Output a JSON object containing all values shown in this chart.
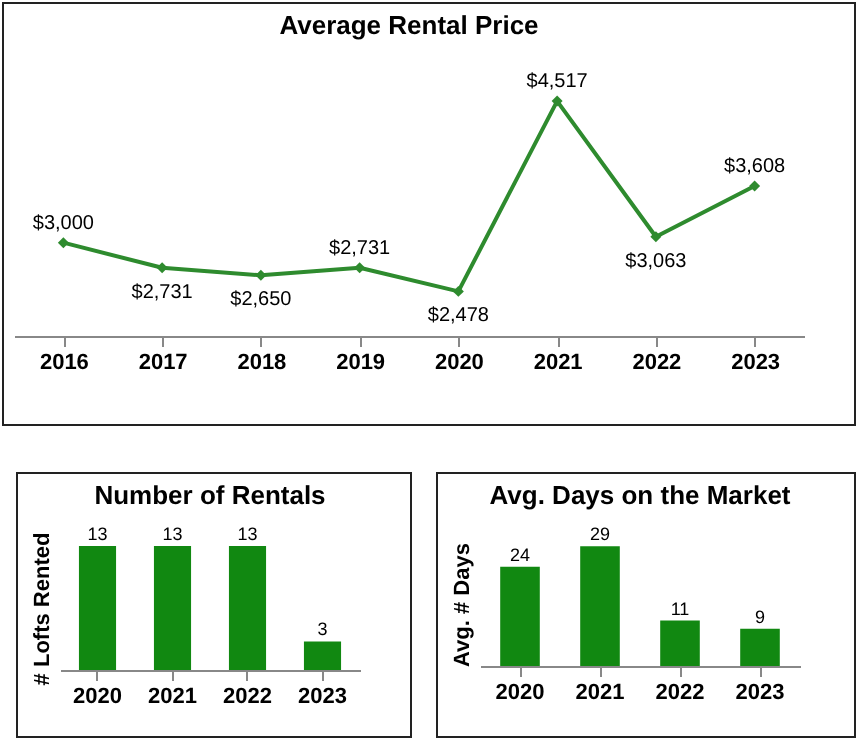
{
  "chart_data": [
    {
      "type": "line",
      "title": "Average Rental Price",
      "categories": [
        "2016",
        "2017",
        "2018",
        "2019",
        "2020",
        "2021",
        "2022",
        "2023"
      ],
      "series": [
        {
          "color": "#2e8b2e",
          "values": [
            3000,
            2731,
            2650,
            2731,
            2478,
            4517,
            3063,
            3608
          ],
          "value_labels": [
            "$3,000",
            "$2,731",
            "$2,650",
            "$2,731",
            "$2,478",
            "$4,517",
            "$3,063",
            "$3,608"
          ]
        }
      ],
      "marker": "diamond",
      "grid": false
    },
    {
      "type": "bar",
      "title": "Number of Rentals",
      "ylabel": "# Lofts Rented",
      "categories": [
        "2020",
        "2021",
        "2022",
        "2023"
      ],
      "series": [
        {
          "color": "#118811",
          "values": [
            13,
            13,
            13,
            3
          ]
        }
      ],
      "data_labels": true,
      "grid": false
    },
    {
      "type": "bar",
      "title": "Avg. Days on the Market",
      "ylabel": "Avg. # Days",
      "categories": [
        "2020",
        "2021",
        "2022",
        "2023"
      ],
      "series": [
        {
          "color": "#118811",
          "values": [
            24,
            29,
            11,
            9
          ]
        }
      ],
      "data_labels": true,
      "grid": false
    }
  ]
}
